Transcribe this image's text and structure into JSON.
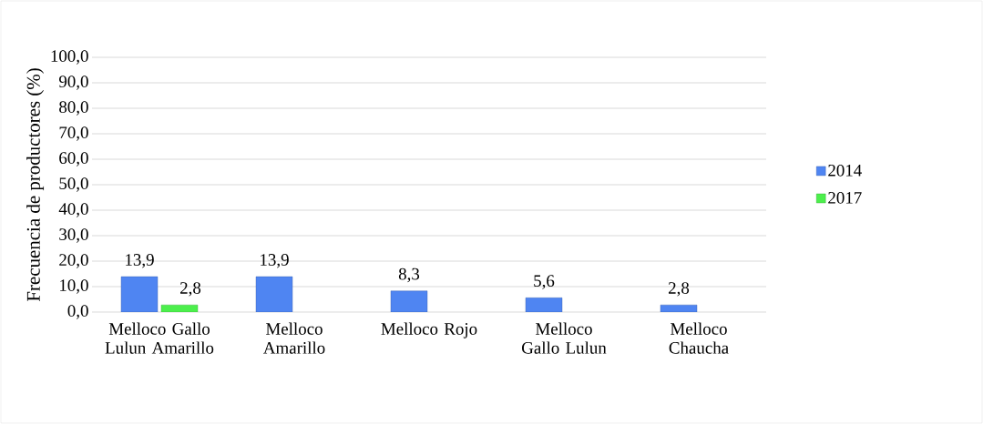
{
  "chart_data": {
    "type": "bar",
    "ylabel": "Frecuencia de productores (%)",
    "categories": [
      "Melloco Gallo Lulun Amarillo",
      "Melloco Amarillo",
      "Melloco Rojo",
      "Melloco Gallo Lulun",
      "Melloco Chaucha"
    ],
    "series": [
      {
        "name": "2014",
        "color": "#4f85f2",
        "values": [
          13.9,
          13.9,
          8.3,
          5.6,
          2.8
        ],
        "value_labels": [
          "13,9",
          "13,9",
          "8,3",
          "5,6",
          "2,8"
        ]
      },
      {
        "name": "2017",
        "color": "#4cef4c",
        "values": [
          2.8,
          null,
          null,
          null,
          null
        ],
        "value_labels": [
          "2,8",
          null,
          null,
          null,
          null
        ]
      }
    ],
    "ylim": [
      0,
      100
    ],
    "yticks": [
      {
        "value": 0,
        "label": "0,0"
      },
      {
        "value": 10,
        "label": "10,0"
      },
      {
        "value": 20,
        "label": "20,0"
      },
      {
        "value": 30,
        "label": "30,0"
      },
      {
        "value": 40,
        "label": "40,0"
      },
      {
        "value": 50,
        "label": "50,0"
      },
      {
        "value": 60,
        "label": "60,0"
      },
      {
        "value": 70,
        "label": "70,0"
      },
      {
        "value": 80,
        "label": "80,0"
      },
      {
        "value": 90,
        "label": "90,0"
      },
      {
        "value": 100,
        "label": "100,0"
      }
    ],
    "grid": "y",
    "legend": "right"
  }
}
